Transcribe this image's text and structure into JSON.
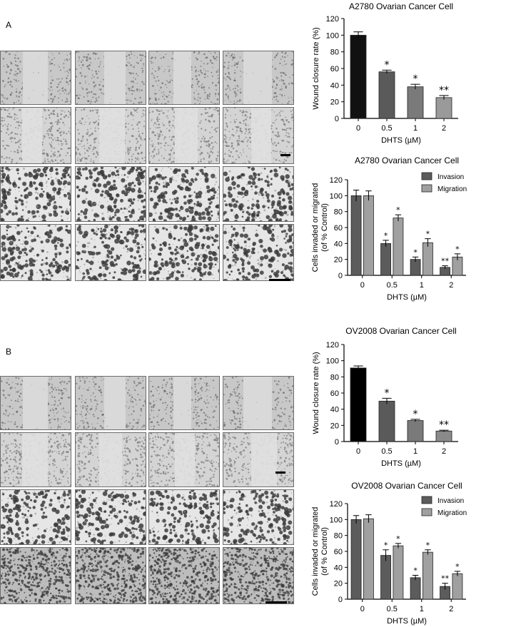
{
  "panels": [
    {
      "letter": "A"
    },
    {
      "letter": "B"
    }
  ],
  "colors": {
    "bar_black": "#111111",
    "bar_dark": "#5a5a5a",
    "bar_mid": "#7a7a7a",
    "bar_light": "#9a9a9a",
    "invasion": "#5c5c5c",
    "migration": "#a0a0a0"
  },
  "chart_data": [
    {
      "type": "bar",
      "title": "A2780 Ovarian Cancer Cell",
      "xlabel": "DHTS (µM)",
      "ylabel": "Wound closure rate (%)",
      "categories": [
        "0",
        "0.5",
        "1",
        "2"
      ],
      "values": [
        100,
        56,
        38,
        25
      ],
      "errors": [
        4,
        2,
        3,
        2.5
      ],
      "significance": [
        "",
        "*",
        "*",
        "**"
      ],
      "ylim": [
        0,
        120
      ],
      "yticks": [
        "0",
        "20",
        "40",
        "60",
        "80",
        "100",
        "120"
      ]
    },
    {
      "type": "bar",
      "title": "A2780 Ovarian Cancer Cell",
      "xlabel": "DHTS (µM)",
      "ylabel": "Cells invaded or migrated",
      "ylabel2": "(of % Control)",
      "categories": [
        "0",
        "0.5",
        "1",
        "2"
      ],
      "series": [
        {
          "name": "Invasion",
          "values": [
            100,
            40,
            20,
            10
          ],
          "errors": [
            7,
            4,
            3,
            2
          ],
          "significance": [
            "",
            "*",
            "*",
            "**"
          ]
        },
        {
          "name": "Migration",
          "values": [
            100,
            72,
            41,
            23
          ],
          "errors": [
            6,
            4,
            5,
            4
          ],
          "significance": [
            "",
            "*",
            "*",
            "*"
          ]
        }
      ],
      "ylim": [
        0,
        120
      ],
      "yticks": [
        "0",
        "20",
        "40",
        "60",
        "80",
        "100",
        "120"
      ],
      "legend": "top-right"
    },
    {
      "type": "bar",
      "title": "OV2008 Ovarian Cancer Cell",
      "xlabel": "DHTS (µM)",
      "ylabel": "Wound closure rate (%)",
      "categories": [
        "0",
        "0.5",
        "1",
        "2"
      ],
      "values": [
        91,
        50,
        26,
        13
      ],
      "errors": [
        2.5,
        3.5,
        1.5,
        1
      ],
      "significance": [
        "",
        "*",
        "*",
        "**"
      ],
      "ylim": [
        0,
        120
      ],
      "yticks": [
        "0",
        "20",
        "40",
        "60",
        "80",
        "100",
        "120"
      ]
    },
    {
      "type": "bar",
      "title": "OV2008 Ovarian Cancer Cell",
      "xlabel": "DHTS (µM)",
      "ylabel": "Cells invaded or migrated",
      "ylabel2": "(of % Control)",
      "categories": [
        "0",
        "0.5",
        "1",
        "2"
      ],
      "series": [
        {
          "name": "Invasion",
          "values": [
            100,
            55,
            27,
            16
          ],
          "errors": [
            5,
            7,
            3,
            4
          ],
          "significance": [
            "",
            "*",
            "*",
            "**"
          ]
        },
        {
          "name": "Migration",
          "values": [
            101,
            67,
            59,
            32
          ],
          "errors": [
            5,
            3,
            3,
            3
          ],
          "significance": [
            "",
            "*",
            "*",
            "*"
          ]
        }
      ],
      "ylim": [
        0,
        120
      ],
      "yticks": [
        "0",
        "20",
        "40",
        "60",
        "80",
        "100",
        "120"
      ],
      "legend": "top-right"
    }
  ]
}
